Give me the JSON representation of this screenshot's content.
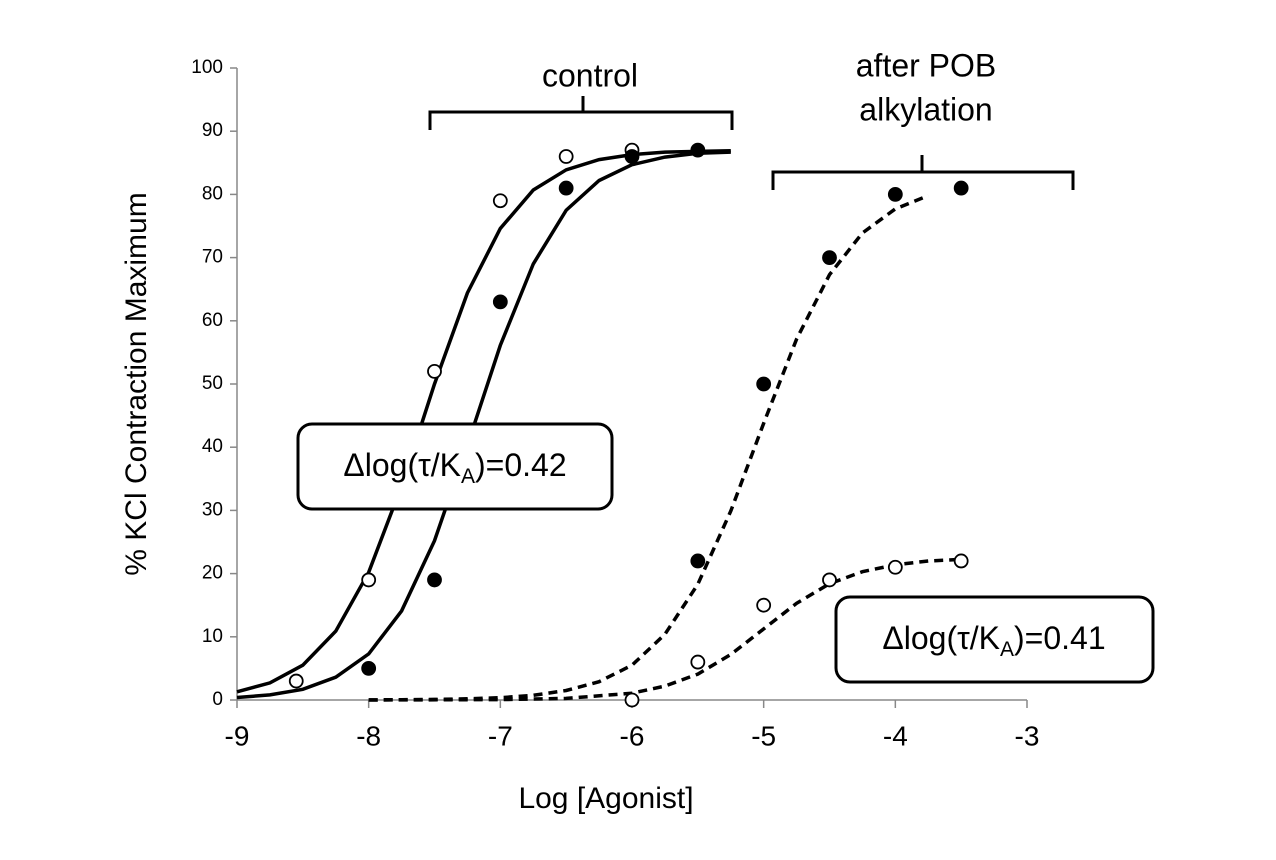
{
  "chart_data": {
    "type": "line",
    "xlabel": "Log [Agonist]",
    "ylabel": "% KCl Contraction Maximum",
    "xlim": [
      -9,
      -3
    ],
    "xticks": [
      -9,
      -8,
      -7,
      -6,
      -5,
      -4,
      -3
    ],
    "ylim": [
      0,
      100
    ],
    "yticks": [
      0,
      10,
      20,
      30,
      40,
      50,
      60,
      70,
      80,
      90,
      100
    ],
    "annotations": [
      {
        "lines": [
          "control"
        ]
      },
      {
        "lines": [
          "after POB",
          "alkylation"
        ]
      },
      {
        "label_parts": [
          "Δlog(τ/K",
          "A",
          ")=0.42"
        ]
      },
      {
        "label_parts": [
          "Δlog(τ/K",
          "A",
          ")=0.41"
        ]
      }
    ],
    "series": [
      {
        "style": "solid",
        "color": "#000000",
        "x": [
          -9,
          -8.75,
          -8.5,
          -8.25,
          -8,
          -7.75,
          -7.5,
          -7.25,
          -7,
          -6.75,
          -6.5,
          -6.25,
          -6,
          -5.75,
          -5.5,
          -5.25
        ],
        "values": [
          1.3,
          2.7,
          5.5,
          10.9,
          20.2,
          33.9,
          50.0,
          64.4,
          74.6,
          80.7,
          83.9,
          85.5,
          86.3,
          86.7,
          86.8,
          86.9
        ]
      },
      {
        "style": "solid",
        "color": "#000000",
        "x": [
          -9,
          -8.75,
          -8.5,
          -8.25,
          -8,
          -7.75,
          -7.5,
          -7.25,
          -7,
          -6.75,
          -6.5,
          -6.25,
          -6,
          -5.75,
          -5.5,
          -5.25
        ],
        "values": [
          0.4,
          0.8,
          1.7,
          3.6,
          7.3,
          14.1,
          25.2,
          40.3,
          56.1,
          69.0,
          77.5,
          82.2,
          84.7,
          85.9,
          86.5,
          86.7
        ]
      },
      {
        "style": "dashed",
        "color": "#000000",
        "x": [
          -8,
          -7.75,
          -7.5,
          -7.25,
          -7,
          -6.75,
          -6.5,
          -6.25,
          -6,
          -5.75,
          -5.5,
          -5.25,
          -5,
          -4.75,
          -4.5,
          -4.25,
          -4,
          -3.75
        ],
        "values": [
          0.02,
          0.05,
          0.09,
          0.19,
          0.37,
          0.74,
          1.5,
          2.9,
          5.5,
          10.4,
          18.3,
          29.9,
          43.8,
          57.1,
          67.3,
          73.9,
          77.7,
          79.8
        ]
      },
      {
        "style": "dashed",
        "color": "#000000",
        "x": [
          -8,
          -7,
          -6.5,
          -6,
          -5.75,
          -5.5,
          -5.25,
          -5,
          -4.75,
          -4.5,
          -4.25,
          -4,
          -3.75,
          -3.5
        ],
        "values": [
          0,
          0.06,
          0.25,
          1.07,
          2.2,
          4.1,
          7.2,
          11.25,
          15.3,
          18.4,
          20.3,
          21.4,
          22.0,
          22.25
        ]
      },
      {
        "marker": "open",
        "color": "#000000",
        "x": [
          -8.55,
          -8,
          -7.5,
          -7,
          -6.5,
          -6
        ],
        "values": [
          3,
          19,
          52,
          79,
          86,
          87
        ]
      },
      {
        "marker": "filled",
        "color": "#000000",
        "x": [
          -8,
          -7.5,
          -7,
          -6.5,
          -6,
          -5.5
        ],
        "values": [
          5,
          19,
          63,
          81,
          86,
          87
        ]
      },
      {
        "marker": "filled",
        "color": "#000000",
        "x": [
          -5.5,
          -5,
          -4.5,
          -4,
          -3.5
        ],
        "values": [
          22,
          50,
          70,
          80,
          81
        ]
      },
      {
        "marker": "open",
        "color": "#000000",
        "x": [
          -6,
          -5.5,
          -5,
          -4.5,
          -4,
          -3.5
        ],
        "values": [
          0,
          6,
          15,
          19,
          21,
          22
        ]
      }
    ]
  }
}
